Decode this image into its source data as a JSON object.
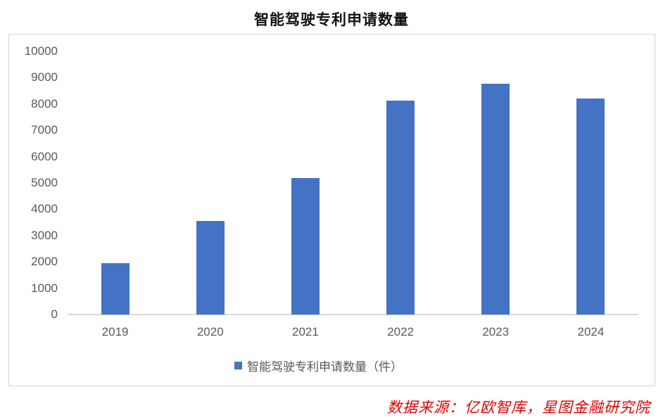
{
  "title": "智能驾驶专利申请数量",
  "legend": {
    "label": "智能驾驶专利申请数量（件）",
    "color": "#4472C4"
  },
  "source": "数据来源：亿欧智库，星图金融研究院",
  "y_ticks": [
    "10000",
    "9000",
    "8000",
    "7000",
    "6000",
    "5000",
    "4000",
    "3000",
    "2000",
    "1000",
    "0"
  ],
  "chart_data": {
    "type": "bar",
    "title": "智能驾驶专利申请数量",
    "categories": [
      "2019",
      "2020",
      "2021",
      "2022",
      "2023",
      "2024"
    ],
    "series": [
      {
        "name": "智能驾驶专利申请数量（件）",
        "values": [
          1950,
          3560,
          5190,
          8130,
          8770,
          8210
        ],
        "color": "#4472C4"
      }
    ],
    "xlabel": "",
    "ylabel": "",
    "ylim": [
      0,
      10000
    ],
    "y_tick_step": 1000,
    "grid": false,
    "legend_position": "bottom"
  }
}
